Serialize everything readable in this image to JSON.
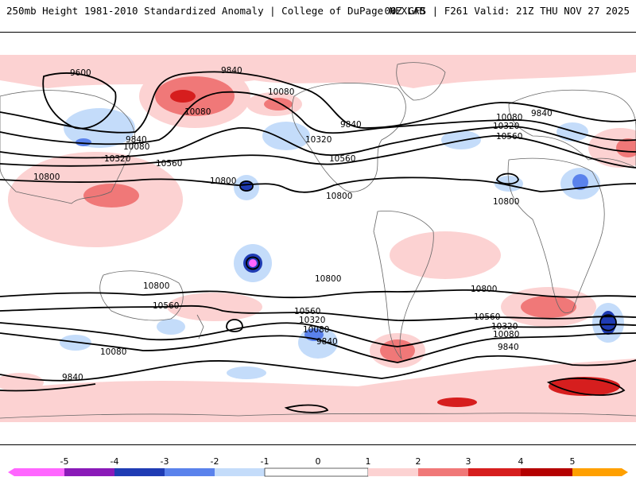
{
  "header": {
    "title": "250mb Height 1981-2010 Standardized Anomaly | College of DuPage NEXLAB",
    "run_info": "00Z GFS | F261 Valid: 21Z THU NOV 27 2025"
  },
  "colors": {
    "anomaly_m5": "#ff66ff",
    "anomaly_m4": "#8a1ab8",
    "anomaly_m3": "#1f3cb4",
    "anomaly_m2": "#5a82ec",
    "anomaly_m1": "#c4dcfa",
    "anomaly_p1": "#fcd2d2",
    "anomaly_p2": "#f07878",
    "anomaly_p3": "#d61e1e",
    "anomaly_p4": "#b40000",
    "anomaly_p5": "#ffa000",
    "land_lines": "#666666",
    "contour": "#000000"
  },
  "colorbar": {
    "ticks": [
      "-5",
      "-4",
      "-3",
      "-2",
      "-1",
      "0",
      "1",
      "2",
      "3",
      "4",
      "5"
    ]
  },
  "contour_labels": {
    "l9600": "9600",
    "l9840a": "9840",
    "l9840b": "9840",
    "l9840c": "9840",
    "l9840d": "9840",
    "l9840e": "9840",
    "l9840f": "9840",
    "l9840g": "9840",
    "l10080a": "10080",
    "l10080b": "10080",
    "l10080c": "10080",
    "l10080d": "10080",
    "l10080e": "10080",
    "l10080f": "10080",
    "l10080g": "10080",
    "l10320a": "10320",
    "l10320b": "10320",
    "l10320c": "10320",
    "l10320d": "10320",
    "l10320e": "10320",
    "l10560a": "10560",
    "l10560b": "10560",
    "l10560c": "10560",
    "l10560d": "10560",
    "l10560e": "10560",
    "l10560f": "10560",
    "l10800a": "10800",
    "l10800b": "10800",
    "l10800c": "10800",
    "l10800d": "10800",
    "l10800e": "10800",
    "l10800f": "10800",
    "l10800g": "10800"
  }
}
